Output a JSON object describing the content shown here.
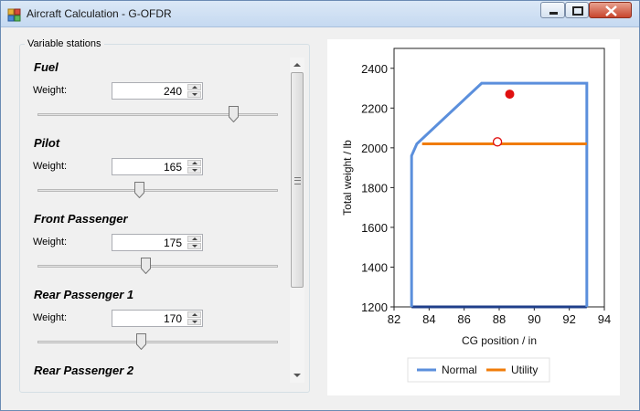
{
  "window": {
    "title": "Aircraft Calculation - G-OFDR",
    "controls": {
      "minimize_icon": "minimize-icon",
      "maximize_icon": "maximize-icon",
      "close_icon": "close-icon"
    }
  },
  "stations_group": {
    "label": "Variable stations",
    "weight_label": "Weight:",
    "stations": [
      {
        "name": "Fuel",
        "weight": "240",
        "slider_fraction": 0.83
      },
      {
        "name": "Pilot",
        "weight": "165",
        "slider_fraction": 0.42
      },
      {
        "name": "Front Passenger",
        "weight": "175",
        "slider_fraction": 0.45
      },
      {
        "name": "Rear Passenger 1",
        "weight": "170",
        "slider_fraction": 0.43
      },
      {
        "name": "Rear Passenger 2"
      }
    ]
  },
  "colors": {
    "normal": "#5b8fdc",
    "utility": "#f07c0a",
    "point": "#e01010",
    "envelope_base": "#1f3f8a"
  },
  "chart_data": {
    "type": "line",
    "xlabel": "CG position / in",
    "ylabel": "Total weight / lb",
    "xlim": [
      82,
      94
    ],
    "ylim": [
      1200,
      2500
    ],
    "xticks": [
      82,
      84,
      86,
      88,
      90,
      92,
      94
    ],
    "yticks": [
      1200,
      1400,
      1600,
      1800,
      2000,
      2200,
      2400
    ],
    "grid": false,
    "legend_placement": "bottom",
    "series": [
      {
        "name": "Normal",
        "color": "#5b8fdc",
        "x": [
          83.0,
          83.0,
          83.3,
          87.0,
          93.0,
          93.0
        ],
        "y": [
          1200,
          1960,
          2020,
          2325,
          2325,
          1200
        ]
      },
      {
        "name": "Utility",
        "color": "#f07c0a",
        "x": [
          83.6,
          93.0
        ],
        "y": [
          2020,
          2020
        ]
      }
    ],
    "points": [
      {
        "x": 88.6,
        "y": 2270,
        "style": "filled",
        "color": "#e01010"
      },
      {
        "x": 87.9,
        "y": 2030,
        "style": "hollow",
        "color": "#e01010"
      }
    ]
  }
}
